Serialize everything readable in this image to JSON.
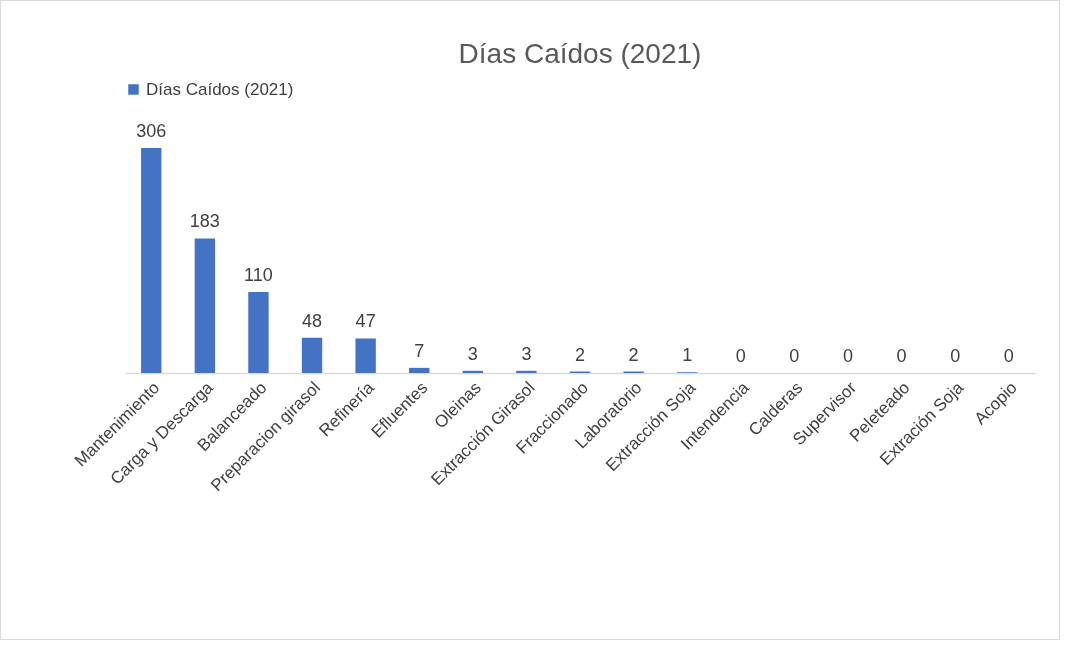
{
  "chart_data": {
    "type": "bar",
    "title": "Días Caídos (2021)",
    "categories": [
      "Mantenimiento",
      "Carga y Descarga",
      "Balanceado",
      "Preparacion girasol",
      "Refinería",
      "Efluentes",
      "Oleinas",
      "Extracción Girasol",
      "Fraccionado",
      "Laboratorio",
      "Extracción Soja",
      "Intendencia",
      "Calderas",
      "Supervisor",
      "Peleteado",
      "Extración Soja",
      "Acopio"
    ],
    "series": [
      {
        "name": "Días Caídos (2021)",
        "color": "#4472c4",
        "values": [
          306,
          183,
          110,
          48,
          47,
          7,
          3,
          3,
          2,
          2,
          1,
          0,
          0,
          0,
          0,
          0,
          0
        ]
      }
    ],
    "data_labels": true,
    "legend": "top",
    "grid": false,
    "tick_labels": "x"
  }
}
